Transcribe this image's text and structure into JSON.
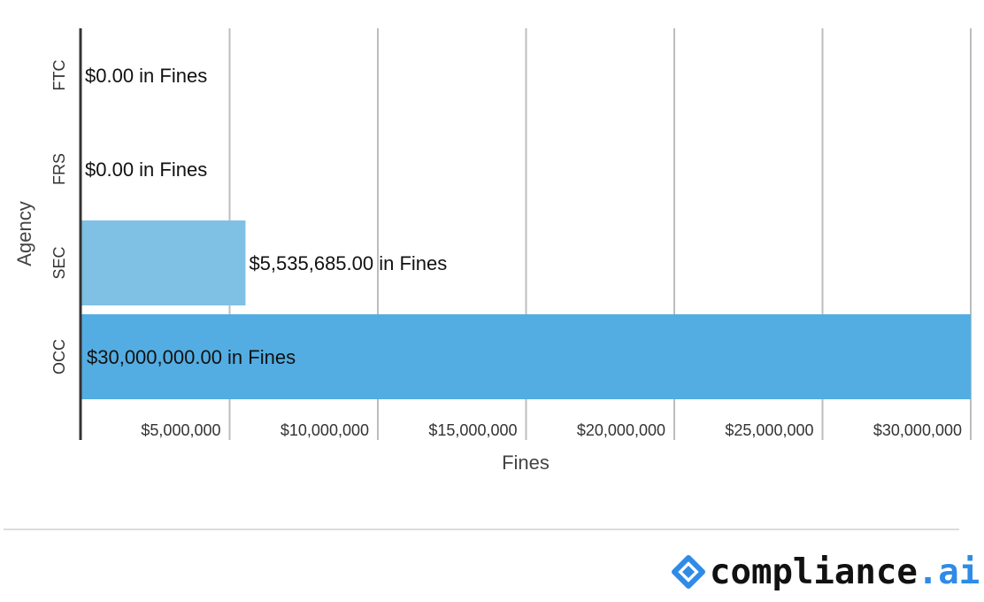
{
  "chart_data": {
    "type": "bar",
    "orientation": "horizontal",
    "categories": [
      "FTC",
      "FRS",
      "SEC",
      "OCC"
    ],
    "values": [
      0,
      0,
      5535685,
      30000000
    ],
    "data_labels": [
      "$0.00 in Fines",
      "$0.00 in Fines",
      "$5,535,685.00 in Fines",
      "$30,000,000.00 in Fines"
    ],
    "bar_colors": [
      "#7fc0e5",
      "#7fc0e5",
      "#7fc0e5",
      "#53ade2"
    ],
    "xlabel": "Fines",
    "ylabel": "Agency",
    "xlim": [
      0,
      30000000
    ],
    "x_ticks": [
      5000000,
      10000000,
      15000000,
      20000000,
      25000000,
      30000000
    ],
    "x_tick_labels": [
      "$5,000,000",
      "$10,000,000",
      "$15,000,000",
      "$20,000,000",
      "$25,000,000",
      "$30,000,000"
    ],
    "grid": true,
    "legend": "none"
  },
  "footer": {
    "brand_name": "compliance",
    "brand_tld": ".ai",
    "brand_color": "#2f8be6"
  }
}
